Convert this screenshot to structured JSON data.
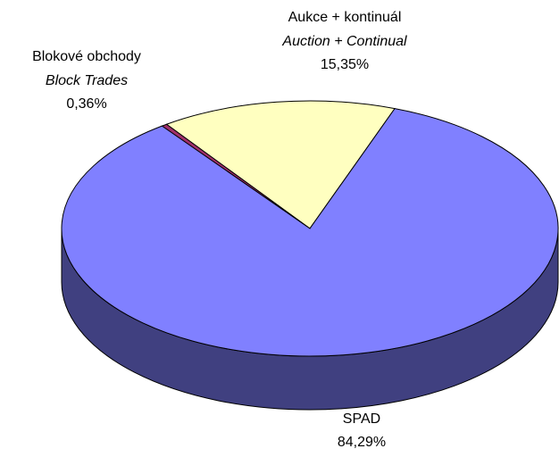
{
  "chart_data": {
    "type": "pie",
    "categories": [
      "Aukce + kontinuál",
      "Blokové obchody",
      "SPAD"
    ],
    "categories_en": [
      "Auction + Continual",
      "Block Trades",
      null
    ],
    "values": [
      15.35,
      0.36,
      84.29
    ],
    "value_labels": [
      "15,35%",
      "0,36%",
      "84,29%"
    ],
    "colors": [
      "#ffffc0",
      "#a0306a",
      "#8080ff"
    ],
    "side_colors": [
      "#808060",
      "#501835",
      "#404080"
    ]
  }
}
